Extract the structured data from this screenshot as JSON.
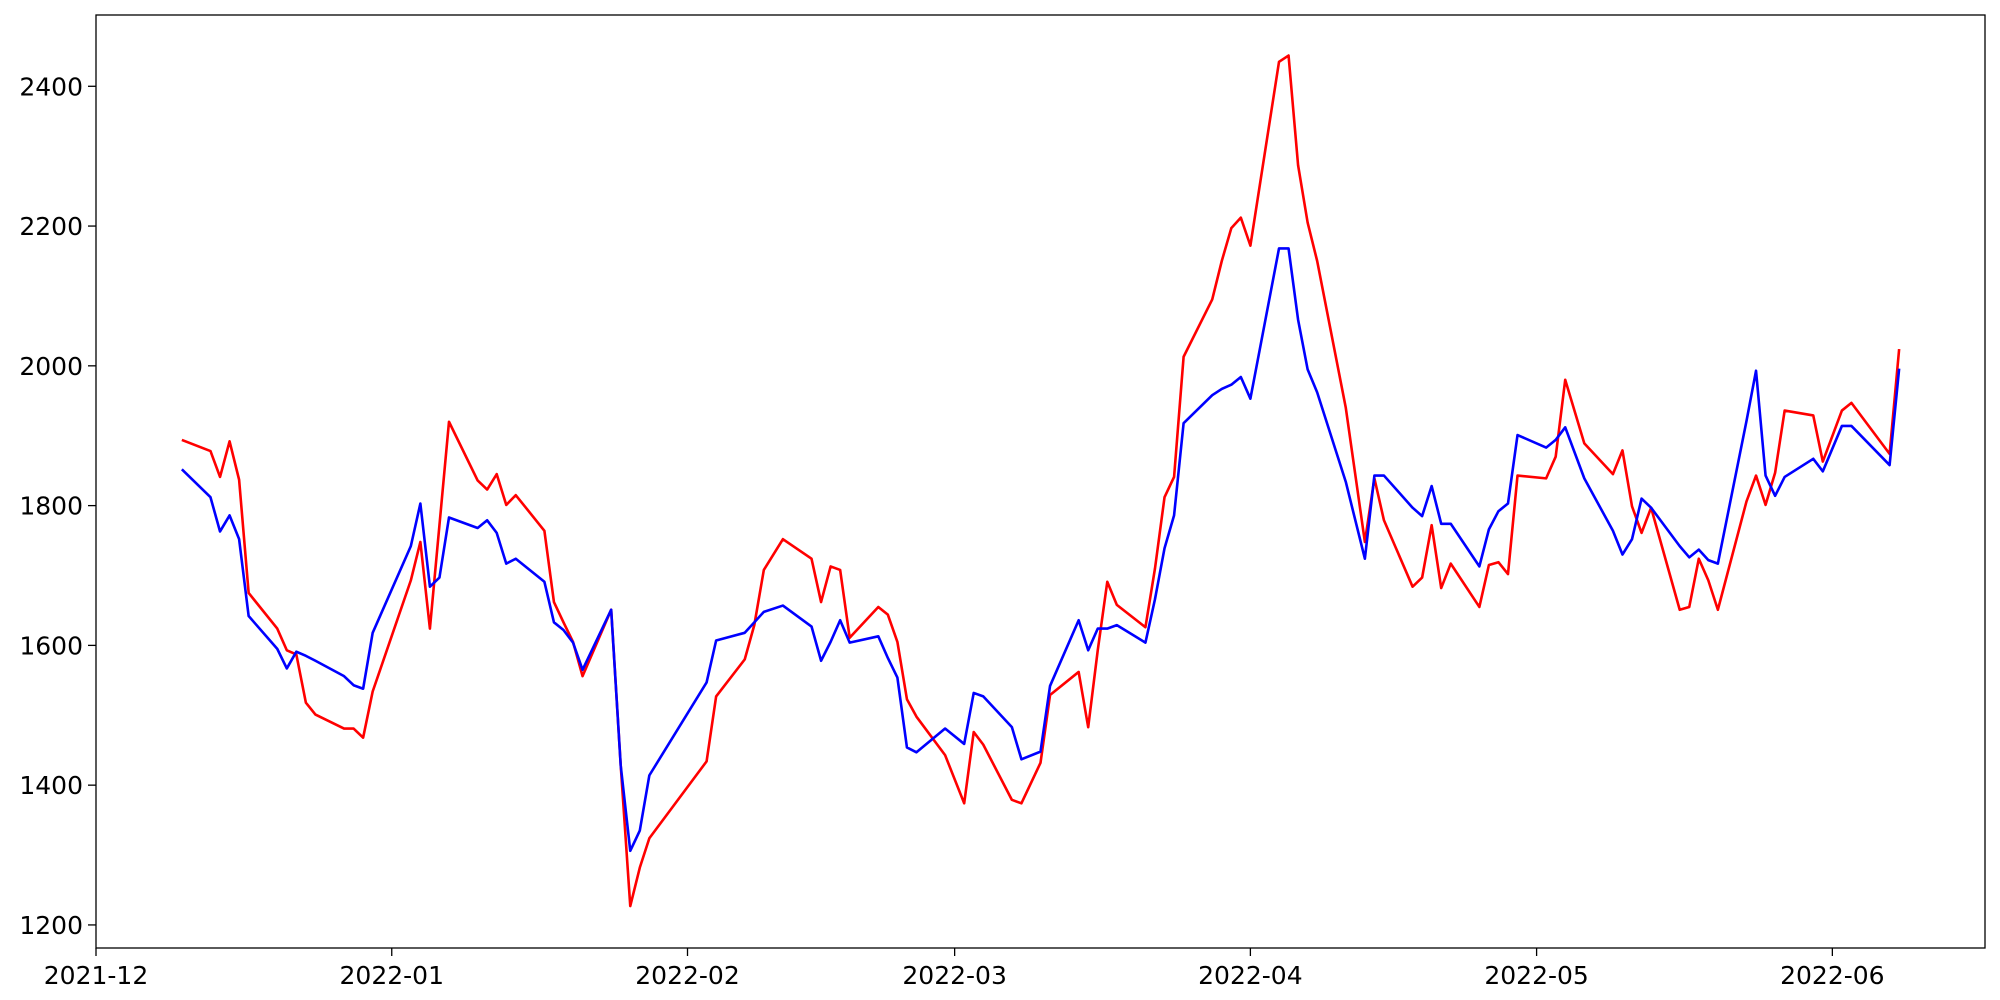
{
  "chart_data": {
    "type": "line",
    "x": [
      18971,
      18974,
      18975,
      18976,
      18977,
      18978,
      18981,
      18982,
      18983,
      18984,
      18985,
      18988,
      18989,
      18990,
      18991,
      18995,
      18996,
      18997,
      18998,
      18999,
      19002,
      19003,
      19004,
      19005,
      19006,
      19009,
      19010,
      19011,
      19012,
      19013,
      19016,
      19017,
      19018,
      19019,
      19020,
      19026,
      19027,
      19030,
      19031,
      19032,
      19034,
      19037,
      19038,
      19039,
      19040,
      19041,
      19044,
      19045,
      19046,
      19047,
      19048,
      19051,
      19053,
      19054,
      19055,
      19058,
      19059,
      19061,
      19062,
      19065,
      19066,
      19067,
      19068,
      19069,
      19072,
      19073,
      19074,
      19075,
      19076,
      19079,
      19080,
      19081,
      19082,
      19083,
      19086,
      19087,
      19088,
      19089,
      19090,
      19093,
      19095,
      19096,
      19097,
      19100,
      19101,
      19102,
      19103,
      19104,
      19107,
      19108,
      19109,
      19110,
      19111,
      19114,
      19115,
      19116,
      19118,
      19121,
      19122,
      19123,
      19124,
      19125,
      19128,
      19129,
      19130,
      19131,
      19132,
      19135,
      19136,
      19137,
      19138,
      19139,
      19142,
      19143,
      19145,
      19146,
      19150,
      19151
    ],
    "series": [
      {
        "color": "#ff0000",
        "values": [
          1894,
          1878,
          1841,
          1892,
          1837,
          1675,
          1624,
          1593,
          1587,
          1518,
          1501,
          1481,
          1481,
          1468,
          1534,
          1693,
          1748,
          1624,
          1772,
          1920,
          1836,
          1823,
          1845,
          1801,
          1815,
          1764,
          1662,
          1633,
          1605,
          1556,
          1651,
          1428,
          1227,
          1282,
          1324,
          1434,
          1527,
          1580,
          1629,
          1708,
          1752,
          1724,
          1662,
          1713,
          1708,
          1611,
          1655,
          1644,
          1605,
          1523,
          1498,
          1443,
          1374,
          1476,
          1458,
          1379,
          1374,
          1432,
          1529,
          1562,
          1483,
          1593,
          1691,
          1658,
          1626,
          1710,
          1812,
          1841,
          2013,
          2095,
          2150,
          2197,
          2212,
          2172,
          2435,
          2444,
          2287,
          2205,
          2150,
          1940,
          1748,
          1839,
          1779,
          1684,
          1697,
          1772,
          1682,
          1717,
          1655,
          1715,
          1719,
          1702,
          1843,
          1839,
          1870,
          1980,
          1889,
          1845,
          1879,
          1799,
          1761,
          1797,
          1651,
          1655,
          1724,
          1693,
          1651,
          1806,
          1843,
          1801,
          1847,
          1936,
          1929,
          1863,
          1936,
          1947,
          1874,
          2024
        ]
      },
      {
        "color": "#0000ff",
        "values": [
          1852,
          1812,
          1763,
          1786,
          1752,
          1642,
          1595,
          1567,
          1591,
          1585,
          1578,
          1556,
          1543,
          1538,
          1618,
          1742,
          1803,
          1684,
          1697,
          1783,
          1768,
          1779,
          1761,
          1717,
          1724,
          1691,
          1633,
          1622,
          1604,
          1565,
          1651,
          1428,
          1306,
          1335,
          1414,
          1547,
          1607,
          1618,
          1633,
          1648,
          1657,
          1627,
          1578,
          1605,
          1636,
          1604,
          1613,
          1582,
          1554,
          1454,
          1447,
          1481,
          1459,
          1532,
          1527,
          1483,
          1437,
          1448,
          1542,
          1636,
          1593,
          1624,
          1624,
          1629,
          1604,
          1666,
          1739,
          1786,
          1918,
          1958,
          1967,
          1973,
          1984,
          1953,
          2168,
          2168,
          2066,
          1995,
          1962,
          1834,
          1724,
          1843,
          1843,
          1797,
          1785,
          1828,
          1774,
          1774,
          1713,
          1766,
          1792,
          1803,
          1901,
          1883,
          1894,
          1912,
          1839,
          1764,
          1730,
          1752,
          1810,
          1797,
          1742,
          1726,
          1737,
          1722,
          1717,
          1921,
          1993,
          1843,
          1814,
          1841,
          1867,
          1849,
          1914,
          1914,
          1858,
          1996
        ]
      }
    ],
    "xlim": [
      18962,
      19160
    ],
    "xticks": [
      {
        "value": 18962,
        "label": "2021-12"
      },
      {
        "value": 18993,
        "label": "2022-01"
      },
      {
        "value": 19024,
        "label": "2022-02"
      },
      {
        "value": 19052,
        "label": "2022-03"
      },
      {
        "value": 19083,
        "label": "2022-04"
      },
      {
        "value": 19113,
        "label": "2022-05"
      },
      {
        "value": 19144,
        "label": "2022-06"
      }
    ],
    "ylim": [
      1167,
      2502
    ],
    "yticks": [
      1200,
      1400,
      1600,
      1800,
      2000,
      2200,
      2400
    ],
    "grid": false
  }
}
